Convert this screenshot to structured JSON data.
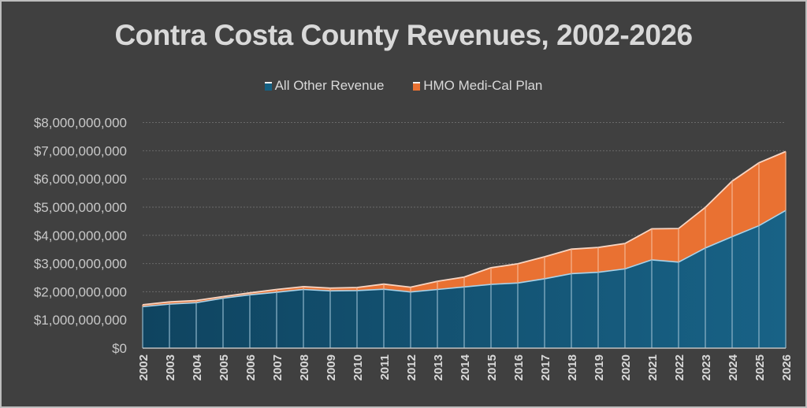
{
  "chart_data": {
    "type": "area",
    "stacked": true,
    "title": "Contra Costa County Revenues, 2002-2026",
    "xlabel": "",
    "ylabel": "",
    "ylim": [
      0,
      8000000000
    ],
    "yticks": [
      0,
      1000000000,
      2000000000,
      3000000000,
      4000000000,
      5000000000,
      6000000000,
      7000000000,
      8000000000
    ],
    "ytick_labels": [
      "$0",
      "$1,000,000,000",
      "$2,000,000,000",
      "$3,000,000,000",
      "$4,000,000,000",
      "$5,000,000,000",
      "$6,000,000,000",
      "$7,000,000,000",
      "$8,000,000,000"
    ],
    "grid": true,
    "legend_position": "top-center",
    "categories": [
      "2002",
      "2003",
      "2004",
      "2005",
      "2006",
      "2007",
      "2008",
      "2009",
      "2010",
      "2011",
      "2012",
      "2013",
      "2014",
      "2015",
      "2016",
      "2017",
      "2018",
      "2019",
      "2020",
      "2021",
      "2022",
      "2023",
      "2024",
      "2025",
      "2026"
    ],
    "series": [
      {
        "name": "All Other Revenue",
        "color": "#156082",
        "values": [
          1470000000,
          1560000000,
          1610000000,
          1770000000,
          1890000000,
          1980000000,
          2080000000,
          2030000000,
          2040000000,
          2090000000,
          1990000000,
          2080000000,
          2170000000,
          2260000000,
          2310000000,
          2460000000,
          2640000000,
          2690000000,
          2810000000,
          3130000000,
          3050000000,
          3550000000,
          3950000000,
          4340000000,
          4880000000
        ]
      },
      {
        "name": "HMO Medi-Cal Plan",
        "color": "#E97132",
        "values": [
          70000000,
          80000000,
          80000000,
          60000000,
          70000000,
          100000000,
          100000000,
          100000000,
          110000000,
          180000000,
          170000000,
          290000000,
          350000000,
          590000000,
          680000000,
          780000000,
          870000000,
          880000000,
          900000000,
          1100000000,
          1190000000,
          1440000000,
          1970000000,
          2230000000,
          2090000000
        ]
      }
    ]
  }
}
